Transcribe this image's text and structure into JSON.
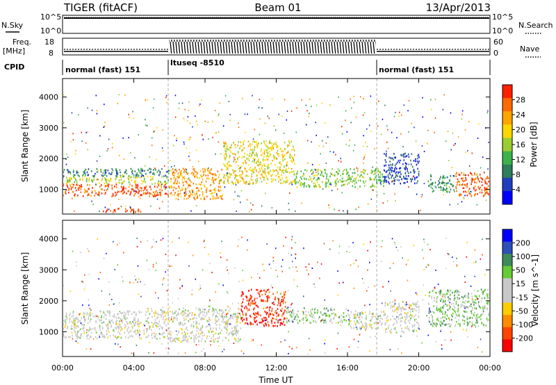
{
  "header": {
    "station": "TIGER (fitACF)",
    "beam": "Beam 01",
    "date": "13/Apr/2013"
  },
  "top_strip": {
    "left_label": "N.Sky",
    "left_ticks": [
      "10^5",
      "10^0"
    ],
    "right_label": "N.Search",
    "right_ticks": [
      "10^5",
      "10^0"
    ]
  },
  "freq_strip": {
    "left_label_1": "Freq.",
    "left_label_2": "[MHz]",
    "left_ticks": [
      "18",
      "8"
    ],
    "right_label": "Nave",
    "right_ticks": [
      "60",
      "0"
    ]
  },
  "cpid": {
    "label": "CPID",
    "segments": [
      {
        "text": "normal (fast) 151",
        "start_hour": 0,
        "end_hour": 6
      },
      {
        "text": "ltuseq -8510",
        "start_hour": 6,
        "end_hour": 18
      },
      {
        "text": "normal (fast) 151",
        "start_hour": 18,
        "end_hour": 24
      }
    ]
  },
  "colors": {
    "power": [
      "#0000ff",
      "#1f3fbf",
      "#2e7d5b",
      "#3cb34a",
      "#9acd32",
      "#ffd700",
      "#ffa500",
      "#ff6a00",
      "#ff2000"
    ],
    "velocity": [
      "#0000ff",
      "#2c4fb8",
      "#3e8a5a",
      "#66cc33",
      "#c8c8c8",
      "#c8c8c8",
      "#ffcc00",
      "#ff8c00",
      "#ff4500",
      "#ff0000"
    ]
  },
  "chart_data": [
    {
      "type": "heatmap",
      "name": "power",
      "xlabel": "",
      "ylabel": "Slant Range [km]",
      "xlim": [
        0,
        24
      ],
      "ylim": [
        200,
        4600
      ],
      "yticks": [
        1000,
        2000,
        3000,
        4000
      ],
      "colorbar": {
        "label": "Power [dB]",
        "ticks": [
          "4",
          "8",
          "12",
          "16",
          "20",
          "24",
          "28"
        ],
        "range": [
          0,
          30
        ]
      },
      "regions": [
        {
          "hours": [
            0,
            6
          ],
          "range_km": [
            800,
            1200
          ],
          "value": 26
        },
        {
          "hours": [
            0,
            6
          ],
          "range_km": [
            1200,
            1450
          ],
          "value": 16
        },
        {
          "hours": [
            0,
            6
          ],
          "range_km": [
            1450,
            1700
          ],
          "value": 8
        },
        {
          "hours": [
            2.2,
            4.4
          ],
          "range_km": [
            280,
            420
          ],
          "value": 28
        },
        {
          "hours": [
            6,
            9
          ],
          "range_km": [
            700,
            1700
          ],
          "value": 22
        },
        {
          "hours": [
            9,
            13
          ],
          "range_km": [
            1200,
            2600
          ],
          "value": 18
        },
        {
          "hours": [
            13,
            18
          ],
          "range_km": [
            1100,
            1700
          ],
          "value": 14
        },
        {
          "hours": [
            18,
            20
          ],
          "range_km": [
            1200,
            2200
          ],
          "value": 5
        },
        {
          "hours": [
            20.5,
            22
          ],
          "range_km": [
            900,
            1500
          ],
          "value": 10
        },
        {
          "hours": [
            22,
            24
          ],
          "range_km": [
            800,
            1600
          ],
          "value": 26
        }
      ]
    },
    {
      "type": "heatmap",
      "name": "velocity",
      "xlabel": "Time UT",
      "ylabel": "Slant Range [km]",
      "xlim": [
        0,
        24
      ],
      "ylim": [
        200,
        4600
      ],
      "yticks": [
        1000,
        2000,
        3000,
        4000
      ],
      "xticks": [
        "00:00",
        "04:00",
        "08:00",
        "12:00",
        "16:00",
        "20:00",
        "00:00"
      ],
      "colorbar": {
        "label": "Velocity [m s^-1]",
        "ticks": [
          "200",
          "100",
          "50",
          "15",
          "-15",
          "-50",
          "-100",
          "-200"
        ],
        "range": [
          -250,
          250
        ]
      },
      "regions": [
        {
          "hours": [
            0,
            6
          ],
          "range_km": [
            800,
            1700
          ],
          "value": 0
        },
        {
          "hours": [
            6,
            10
          ],
          "range_km": [
            700,
            1800
          ],
          "value": 0
        },
        {
          "hours": [
            10,
            12.5
          ],
          "range_km": [
            1200,
            2400
          ],
          "value": -200
        },
        {
          "hours": [
            12.5,
            16
          ],
          "range_km": [
            1300,
            1800
          ],
          "value": 60
        },
        {
          "hours": [
            16,
            18
          ],
          "range_km": [
            1100,
            1700
          ],
          "value": 0
        },
        {
          "hours": [
            18,
            20
          ],
          "range_km": [
            1000,
            2000
          ],
          "value": 0
        },
        {
          "hours": [
            20.5,
            24
          ],
          "range_km": [
            1200,
            2400
          ],
          "value": 60
        }
      ]
    }
  ]
}
